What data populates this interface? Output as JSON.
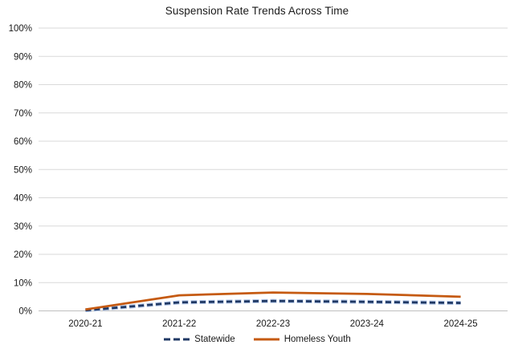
{
  "chart_data": {
    "type": "line",
    "title": "Suspension Rate Trends Across Time",
    "categories": [
      "2020-21",
      "2021-22",
      "2022-23",
      "2023-24",
      "2024-25"
    ],
    "series": [
      {
        "name": "Statewide",
        "values": [
          0.2,
          3.0,
          3.5,
          3.2,
          2.8
        ],
        "color": "#1F3864",
        "line_style": "dashed",
        "halo_color": "#B4C7E7"
      },
      {
        "name": "Homeless Youth",
        "values": [
          0.5,
          5.5,
          6.5,
          6.0,
          5.0
        ],
        "color": "#C55A11",
        "line_style": "solid"
      }
    ],
    "xlabel": "",
    "ylabel": "",
    "ylim": [
      0,
      100
    ],
    "ytick_step": 10,
    "ytick_suffix": "%",
    "grid": true,
    "legend_position": "bottom"
  },
  "colors": {
    "gridline": "#D9D9D9",
    "axis_line": "#BFBFBF",
    "text": "#1a1a1a",
    "background": "#FFFFFF"
  }
}
